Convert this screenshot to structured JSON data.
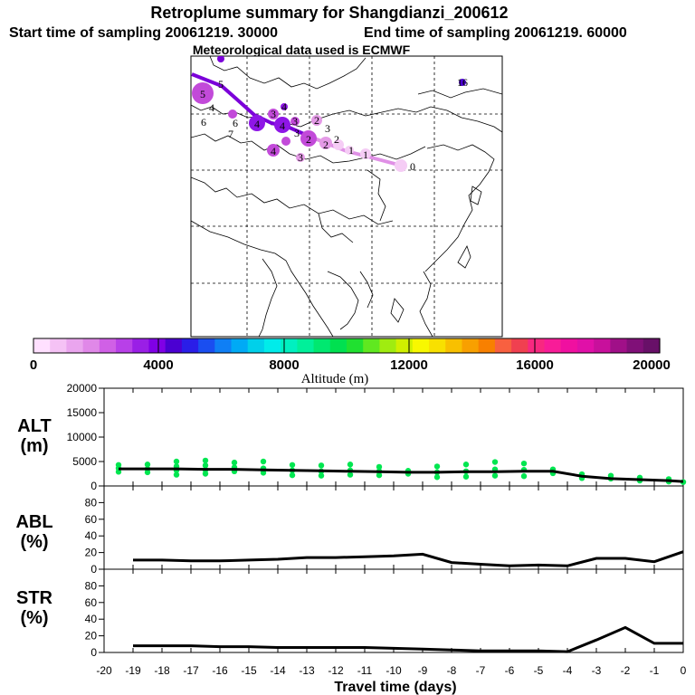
{
  "title": "Retroplume summary for Shangdianzi_200612",
  "start_label": "Start time of sampling 20061219. 30000",
  "end_label": "End time of sampling 20061219. 60000",
  "met_label": "Meteorological data used is ECMWF",
  "colors": {
    "low": "#f5ccf5",
    "light": "#e49ae6",
    "mid": "#c24ad9",
    "deep": "#8e16e6",
    "violet": "#7b00d9",
    "alt_dot": "#00e650",
    "line": "#000000"
  },
  "colorbar": {
    "ticks": [
      "0",
      "4000",
      "8000",
      "12000",
      "16000",
      "20000"
    ],
    "label": "Altitude (m)",
    "segments": [
      "#ffe0ff",
      "#f5c2f5",
      "#eaa5ee",
      "#e088e8",
      "#d060e6",
      "#b840e8",
      "#9a1fe6",
      "#8000e6",
      "#4b00d2",
      "#2a1ee8",
      "#1a4ef0",
      "#0f7ff5",
      "#00aaf5",
      "#00d0ea",
      "#00ecea",
      "#00f0c0",
      "#00f09a",
      "#00e870",
      "#00e050",
      "#20e030",
      "#60e820",
      "#a0ec10",
      "#d0f000",
      "#f8f800",
      "#f8e000",
      "#f8c000",
      "#f8a000",
      "#f88000",
      "#f86040",
      "#f04050",
      "#f82880",
      "#f81c98",
      "#f010a0",
      "#e010a8",
      "#c8109c",
      "#a01088",
      "#801078",
      "#681068"
    ]
  },
  "map_labels": [
    {
      "text": "5",
      "size": 9
    },
    {
      "text": "5",
      "size": 1
    },
    {
      "text": "4",
      "size": 1
    },
    {
      "text": "16",
      "size": 1
    },
    {
      "text": "6",
      "size": 1
    },
    {
      "text": "6",
      "size": 1
    },
    {
      "text": "7",
      "size": 1
    },
    {
      "text": "3",
      "size": 2
    },
    {
      "text": "4",
      "size": 2
    },
    {
      "text": "4",
      "size": 2
    },
    {
      "text": "4",
      "size": 1
    },
    {
      "text": "3",
      "size": 1
    },
    {
      "text": "2",
      "size": 1
    },
    {
      "text": "3",
      "size": 1
    },
    {
      "text": "2",
      "size": 2
    },
    {
      "text": "3",
      "size": 2
    },
    {
      "text": "4",
      "size": 2
    },
    {
      "text": "2",
      "size": 1
    },
    {
      "text": "2",
      "size": 1
    },
    {
      "text": "3",
      "size": 1
    },
    {
      "text": "1",
      "size": 1
    },
    {
      "text": "1",
      "size": 1
    },
    {
      "text": "0",
      "size": 1
    }
  ],
  "chart_data": [
    {
      "type": "scatter",
      "ylabel": "ALT\n(m)",
      "ylim": [
        0,
        20000
      ],
      "yticks": [
        "0",
        "5000",
        "10000",
        "15000",
        "20000"
      ],
      "xlim": [
        -20,
        0
      ],
      "series": [
        {
          "name": "mean altitude",
          "x": [
            -19.5,
            -18.5,
            -17.5,
            -16.5,
            -15.5,
            -14.5,
            -13.5,
            -12.5,
            -11.5,
            -10.5,
            -9.5,
            -8.5,
            -7.5,
            -6.5,
            -5.5,
            -4.5,
            -3.5,
            -2.5,
            -1.5,
            -0.5,
            0
          ],
          "values": [
            3500,
            3500,
            3500,
            3400,
            3400,
            3300,
            3200,
            3100,
            3000,
            2900,
            2800,
            2800,
            2900,
            2900,
            3000,
            3000,
            2000,
            1500,
            1300,
            1100,
            900
          ]
        },
        {
          "name": "particle altitudes",
          "x": [
            -19.5,
            -19.5,
            -19.5,
            -18.5,
            -18.5,
            -18.5,
            -17.5,
            -17.5,
            -17.5,
            -17.5,
            -16.5,
            -16.5,
            -16.5,
            -16.5,
            -15.5,
            -15.5,
            -15.5,
            -14.5,
            -14.5,
            -14.5,
            -13.5,
            -13.5,
            -13.5,
            -12.5,
            -12.5,
            -12.5,
            -11.5,
            -11.5,
            -11.5,
            -10.5,
            -10.5,
            -10.5,
            -9.5,
            -9.5,
            -8.5,
            -8.5,
            -8.5,
            -7.5,
            -7.5,
            -7.5,
            -6.5,
            -6.5,
            -6.5,
            -5.5,
            -5.5,
            -5.5,
            -4.5,
            -4.5,
            -3.5,
            -3.5,
            -2.5,
            -2.5,
            -1.5,
            -1.5,
            -0.5,
            -0.5,
            0
          ],
          "values": [
            2900,
            3600,
            4300,
            2800,
            3500,
            4400,
            2300,
            3200,
            4000,
            5000,
            2500,
            3300,
            4200,
            5200,
            3000,
            3800,
            4800,
            2700,
            3600,
            5000,
            2200,
            3200,
            4300,
            2100,
            3000,
            4200,
            2300,
            3200,
            4400,
            2200,
            3000,
            3900,
            2500,
            3100,
            1800,
            2800,
            4000,
            1900,
            3000,
            4400,
            2100,
            3400,
            4900,
            2000,
            3300,
            4600,
            2600,
            3400,
            1600,
            2400,
            1500,
            2100,
            1100,
            1700,
            900,
            1400,
            800
          ]
        }
      ]
    },
    {
      "type": "line",
      "ylabel": "ABL\n(%)",
      "ylim": [
        0,
        100
      ],
      "yticks": [
        "0",
        "20",
        "40",
        "60",
        "80"
      ],
      "xlim": [
        -20,
        0
      ],
      "x": [
        -19,
        -18,
        -17,
        -16,
        -15,
        -14,
        -13,
        -12,
        -11,
        -10,
        -9,
        -8,
        -7,
        -6,
        -5,
        -4,
        -3,
        -2,
        -1,
        0
      ],
      "values": [
        11,
        11,
        10,
        10,
        11,
        12,
        14,
        14,
        15,
        16,
        18,
        8,
        6,
        4,
        5,
        4,
        13,
        13,
        9,
        21
      ]
    },
    {
      "type": "line",
      "ylabel": "STR\n(%)",
      "ylim": [
        0,
        100
      ],
      "yticks": [
        "0",
        "20",
        "40",
        "60",
        "80"
      ],
      "xlim": [
        -20,
        0
      ],
      "xticks": [
        "-20",
        "-19",
        "-18",
        "-17",
        "-16",
        "-15",
        "-14",
        "-13",
        "-12",
        "-11",
        "-10",
        "-9",
        "-8",
        "-7",
        "-6",
        "-5",
        "-4",
        "-3",
        "-2",
        "-1",
        "0"
      ],
      "xlabel": "Travel time (days)",
      "x": [
        -19,
        -18,
        -17,
        -16,
        -15,
        -14,
        -13,
        -12,
        -11,
        -10,
        -9,
        -8,
        -7,
        -6,
        -5,
        -4,
        -3,
        -2,
        -1,
        0
      ],
      "values": [
        8,
        8,
        8,
        7,
        7,
        6,
        6,
        6,
        6,
        5,
        4,
        3,
        2,
        2,
        2,
        1,
        15,
        30,
        11,
        11
      ]
    }
  ]
}
